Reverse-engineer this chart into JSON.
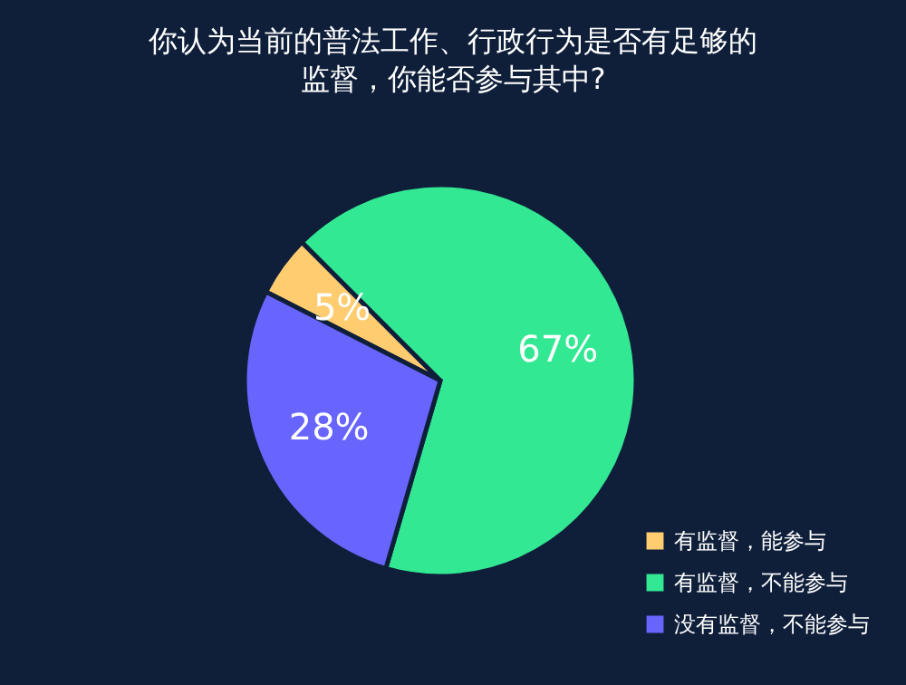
{
  "chart_data": {
    "type": "pie",
    "title": "你认为当前的普法工作、行政行为是否有足够的监督，你能否参与其中?",
    "categories": [
      "有监督，能参与",
      "有监督，不能参与",
      "没有监督，不能参与"
    ],
    "values": [
      5,
      67,
      28
    ],
    "colors": [
      "#ffcc6f",
      "#33e893",
      "#6865ff"
    ],
    "value_labels": [
      "5%",
      "67%",
      "28%"
    ],
    "legend": "bottom right"
  }
}
